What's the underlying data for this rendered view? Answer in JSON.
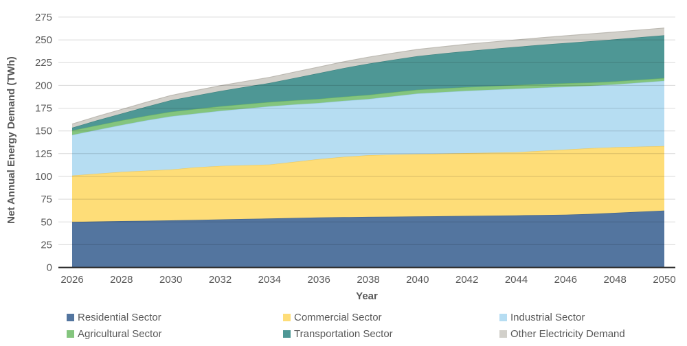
{
  "chart_data": {
    "type": "area",
    "stacked": true,
    "title": "",
    "xlabel": "Year",
    "ylabel": "Net Annual Energy Demand (TWh)",
    "x": [
      2026,
      2027,
      2028,
      2029,
      2030,
      2031,
      2032,
      2033,
      2034,
      2035,
      2036,
      2037,
      2038,
      2039,
      2040,
      2041,
      2042,
      2043,
      2044,
      2045,
      2046,
      2047,
      2048,
      2049,
      2050
    ],
    "x_tick_labels": [
      2026,
      2028,
      2030,
      2032,
      2034,
      2036,
      2038,
      2040,
      2042,
      2044,
      2046,
      2048,
      2050
    ],
    "ylim": [
      0,
      275
    ],
    "y_tick_step": 25,
    "grid": true,
    "legend_position": "bottom",
    "axis_text_color": "#595959",
    "gridline_color": "rgba(0,0,0,0.15)",
    "axis_line_color": "#262626",
    "series": [
      {
        "name": "Residential Sector",
        "color": "#53759f",
        "edge_color": "#3f618b",
        "values": [
          50,
          50.5,
          51,
          51.3,
          51.7,
          52.2,
          52.8,
          53.3,
          53.8,
          54.4,
          55,
          55.3,
          55.6,
          55.8,
          56,
          56.3,
          56.6,
          56.9,
          57.2,
          57.6,
          58,
          58.8,
          60,
          61.2,
          62.5
        ]
      },
      {
        "name": "Commercial Sector",
        "color": "#fedd78",
        "edge_color": "#ecc95f",
        "values": [
          51,
          52.5,
          54,
          55,
          55.8,
          57.8,
          58.7,
          59,
          59.2,
          61.6,
          64,
          66.2,
          67.7,
          68.2,
          68.6,
          68.8,
          69,
          69.2,
          69.4,
          70.4,
          71.5,
          72.2,
          72,
          71.5,
          70.8
        ]
      },
      {
        "name": "Industrial Sector",
        "color": "#b6ddf2",
        "edge_color": "#9ccbe6",
        "values": [
          44.5,
          48,
          51.5,
          55.2,
          58.5,
          59,
          60.5,
          62.2,
          64,
          63,
          61.7,
          61.5,
          61.7,
          64,
          66.4,
          67.4,
          68.4,
          69.1,
          69.7,
          69.4,
          69,
          68.5,
          69,
          70.3,
          71.7
        ]
      },
      {
        "name": "Agricultural Sector",
        "color": "#84c57e",
        "edge_color": "#69b267",
        "values": [
          5,
          5,
          5,
          5,
          5,
          5,
          5,
          4.8,
          4.7,
          4.6,
          4.5,
          4.5,
          4.5,
          4.4,
          4.3,
          4.2,
          4.1,
          4,
          4,
          4,
          3.8,
          3.6,
          3.4,
          3.2,
          3
        ]
      },
      {
        "name": "Transportation Sector",
        "color": "#4e9795",
        "edge_color": "#3d827f",
        "values": [
          3,
          5.5,
          7.5,
          10,
          12.7,
          14.8,
          16.8,
          19,
          20.9,
          24.4,
          28.3,
          31.5,
          34.4,
          35.7,
          36.9,
          38.3,
          39.6,
          40.8,
          42,
          43.1,
          44.3,
          45.4,
          46.2,
          46.6,
          47
        ]
      },
      {
        "name": "Other Electricity Demand",
        "color": "#d2d0ca",
        "edge_color": "#bdbab3",
        "values": [
          4,
          4.3,
          4.6,
          4.9,
          5.2,
          5.5,
          5.8,
          6,
          6.2,
          6.5,
          6.7,
          6.9,
          7.1,
          7.2,
          7.3,
          7.4,
          7.5,
          7.6,
          7.7,
          7.8,
          7.9,
          8,
          8,
          8,
          8
        ]
      }
    ]
  }
}
